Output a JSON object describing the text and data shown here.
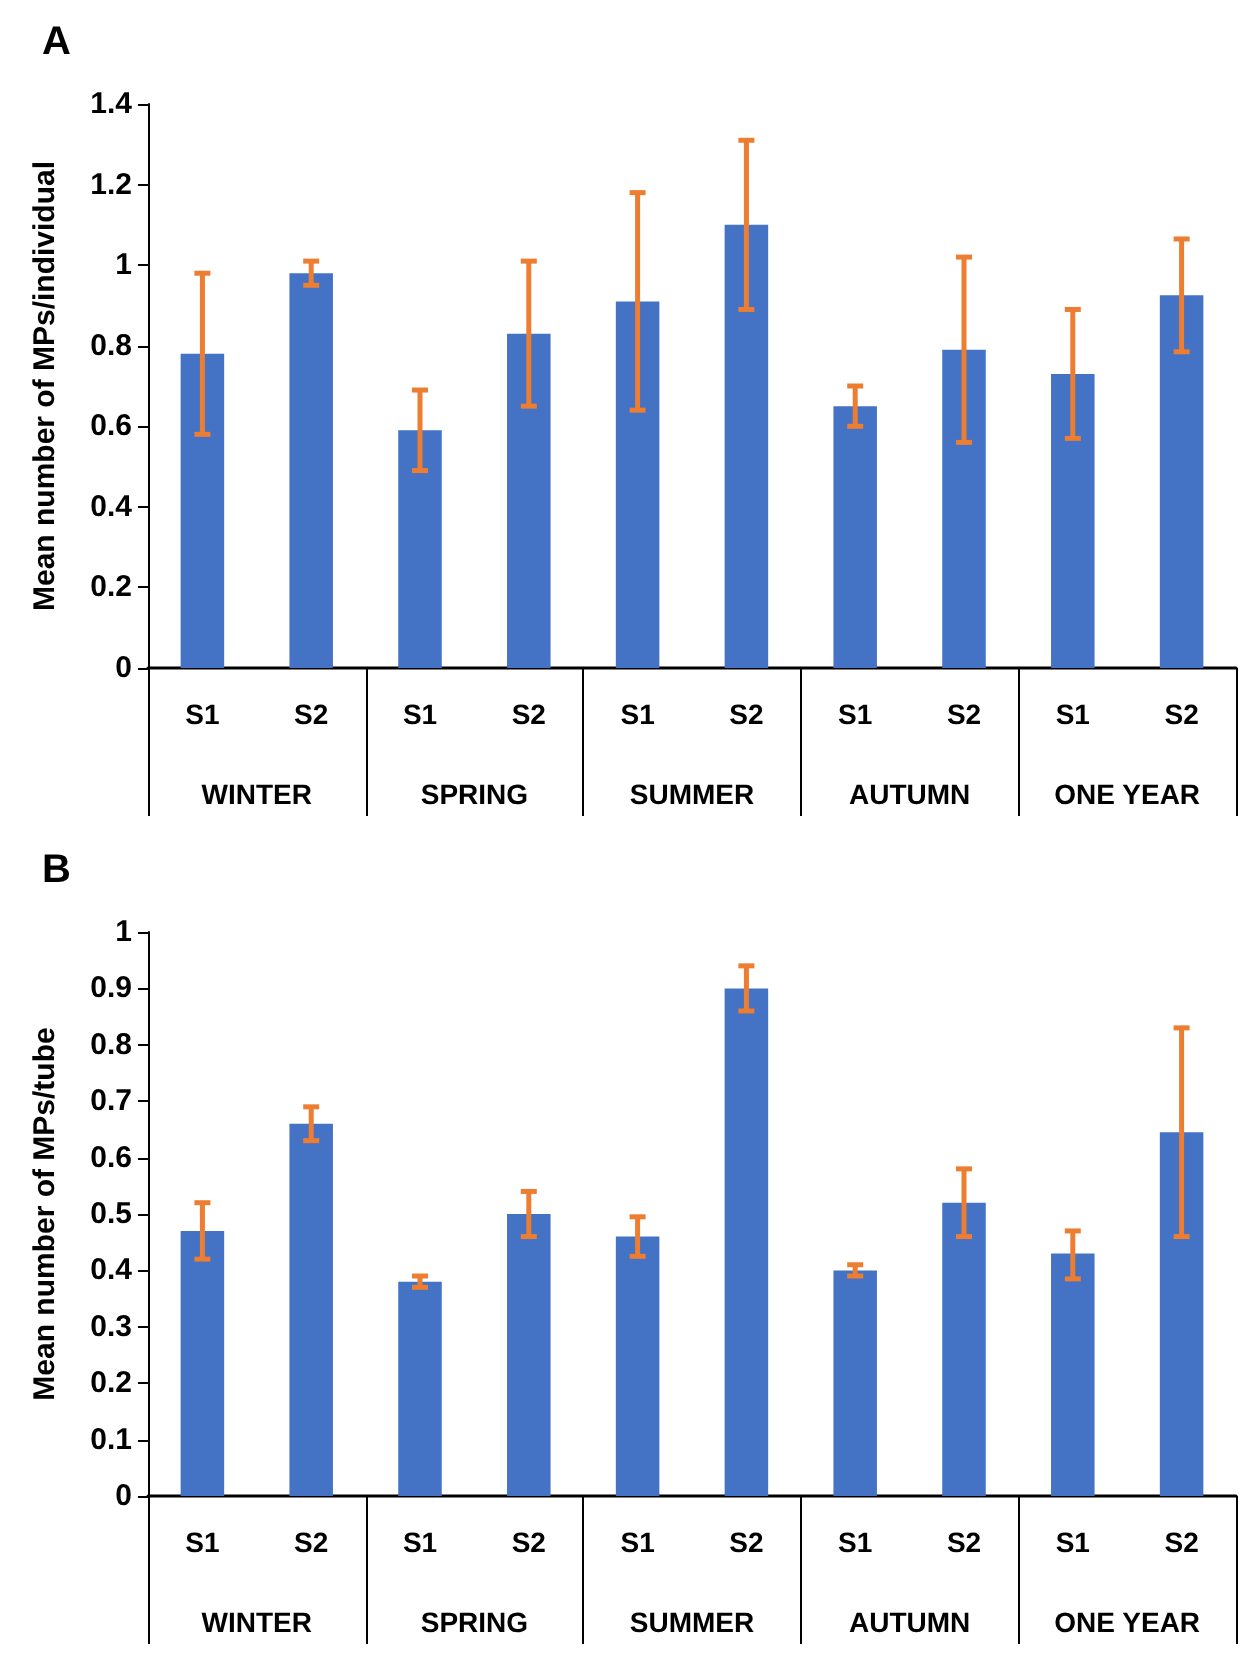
{
  "chart_data": [
    {
      "type": "bar",
      "title": "A",
      "ylabel": "Mean number of MPs/individual",
      "categories": [
        "S1",
        "S2",
        "S1",
        "S2",
        "S1",
        "S2",
        "S1",
        "S2",
        "S1",
        "S2"
      ],
      "annotations": [
        "WINTER",
        "SPRING",
        "SUMMER",
        "AUTUMN",
        "ONE YEAR"
      ],
      "series": [
        {
          "color": "#4472c4",
          "values": [
            0.78,
            0.98,
            0.59,
            0.83,
            0.91,
            1.1,
            0.65,
            0.79,
            0.73,
            0.925
          ],
          "errors": [
            [
              0.58,
              0.98
            ],
            [
              0.95,
              1.01
            ],
            [
              0.49,
              0.69
            ],
            [
              0.65,
              1.01
            ],
            [
              0.64,
              1.18
            ],
            [
              0.89,
              1.31
            ],
            [
              0.6,
              0.7
            ],
            [
              0.56,
              1.02
            ],
            [
              0.57,
              0.89
            ],
            [
              0.785,
              1.065
            ]
          ]
        }
      ],
      "ylim": [
        0,
        1.4
      ],
      "yticks": [
        0,
        0.2,
        0.4,
        0.6,
        0.8,
        1,
        1.2,
        1.4
      ],
      "grid": false
    },
    {
      "type": "bar",
      "title": "B",
      "ylabel": "Mean number of MPs/tube",
      "categories": [
        "S1",
        "S2",
        "S1",
        "S2",
        "S1",
        "S2",
        "S1",
        "S2",
        "S1",
        "S2"
      ],
      "annotations": [
        "WINTER",
        "SPRING",
        "SUMMER",
        "AUTUMN",
        "ONE YEAR"
      ],
      "series": [
        {
          "color": "#4472c4",
          "values": [
            0.47,
            0.66,
            0.38,
            0.5,
            0.46,
            0.9,
            0.4,
            0.52,
            0.43,
            0.645
          ],
          "errors": [
            [
              0.42,
              0.52
            ],
            [
              0.63,
              0.69
            ],
            [
              0.37,
              0.39
            ],
            [
              0.46,
              0.54
            ],
            [
              0.425,
              0.495
            ],
            [
              0.86,
              0.94
            ],
            [
              0.39,
              0.41
            ],
            [
              0.46,
              0.58
            ],
            [
              0.385,
              0.47
            ],
            [
              0.46,
              0.83
            ]
          ]
        }
      ],
      "ylim": [
        0,
        1
      ],
      "yticks": [
        0,
        0.1,
        0.2,
        0.3,
        0.4,
        0.5,
        0.6,
        0.7,
        0.8,
        0.9,
        1
      ],
      "grid": false
    }
  ]
}
